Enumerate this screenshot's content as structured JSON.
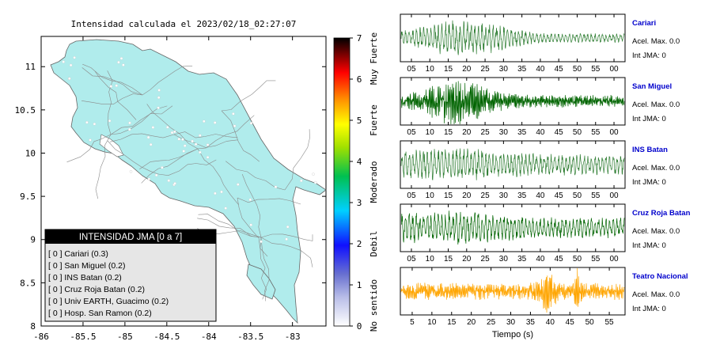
{
  "map": {
    "title": "Intensidad calculada el 2023/02/18_02:27:07",
    "x_ticks": [
      "-86",
      "-85.5",
      "-85",
      "-84.5",
      "-84",
      "-83.5",
      "-83"
    ],
    "y_ticks": [
      "11",
      "10.5",
      "10",
      "9.5",
      "9",
      "8.5",
      "8"
    ],
    "xlim": [
      -86,
      -82.6
    ],
    "ylim": [
      8,
      11.35
    ],
    "land_color": "#b0ecec",
    "legend": {
      "title": "INTENSIDAD JMA [0 a 7]",
      "items": [
        "[ 0 ]  Cariari (0.3)",
        "[ 0 ]  San Miguel (0.2)",
        "[ 0 ]  INS Batan (0.2)",
        "[ 0 ]  Cruz Roja Batan (0.2)",
        "[ 0 ]  Univ EARTH, Guacimo (0.2)",
        "[ 0 ]  Hosp. San Ramon (0.2)"
      ]
    }
  },
  "colorbar": {
    "ticks": [
      "0",
      "1",
      "2",
      "3",
      "4",
      "5",
      "6",
      "7"
    ],
    "range": [
      0,
      7
    ],
    "category_labels": [
      "No sentido",
      "Debil",
      "Moderado",
      "Fuerte",
      "Muy Fuerte"
    ],
    "colors": [
      "#ffffff",
      "#8890d8",
      "#1010ff",
      "#00d0ff",
      "#00c000",
      "#ffff00",
      "#ff9900",
      "#ff0000",
      "#000000"
    ]
  },
  "chart_data": {
    "type": "line",
    "xlabel": "Tiempo (s)",
    "stations": [
      {
        "name": "Cariari",
        "accel_label": "Acel. Max. 0.0",
        "int_label": "Int JMA: 0",
        "color": "#2e7d32",
        "x_ticks": [
          "05",
          "10",
          "15",
          "20",
          "25",
          "30",
          "35",
          "40",
          "45",
          "50",
          "55",
          "00"
        ]
      },
      {
        "name": "San Miguel",
        "accel_label": "Acel. Max. 0.0",
        "int_label": "Int JMA: 0",
        "color": "#006400",
        "x_ticks": [
          "05",
          "10",
          "15",
          "20",
          "25",
          "30",
          "35",
          "40",
          "45",
          "50",
          "55",
          "00"
        ]
      },
      {
        "name": "INS Batan",
        "accel_label": "Acel. Max. 0.0",
        "int_label": "Int JMA: 0",
        "color": "#2e7d32",
        "x_ticks": [
          "05",
          "10",
          "15",
          "20",
          "25",
          "30",
          "35",
          "40",
          "45",
          "50",
          "55",
          "00"
        ]
      },
      {
        "name": "Cruz Roja Batan",
        "accel_label": "Acel. Max. 0.0",
        "int_label": "Int JMA: 0",
        "color": "#006400",
        "x_ticks": [
          "05",
          "10",
          "15",
          "20",
          "25",
          "30",
          "35",
          "40",
          "45",
          "50",
          "55",
          "00"
        ]
      },
      {
        "name": "Teatro Nacional",
        "accel_label": "Acel. Max. 0.0",
        "int_label": "Int JMA: 0",
        "color": "#ffa500",
        "x_ticks": [
          "5",
          "10",
          "15",
          "20",
          "25",
          "30",
          "35",
          "40",
          "45",
          "50",
          "55"
        ]
      }
    ]
  },
  "link_color": "#0000cc"
}
